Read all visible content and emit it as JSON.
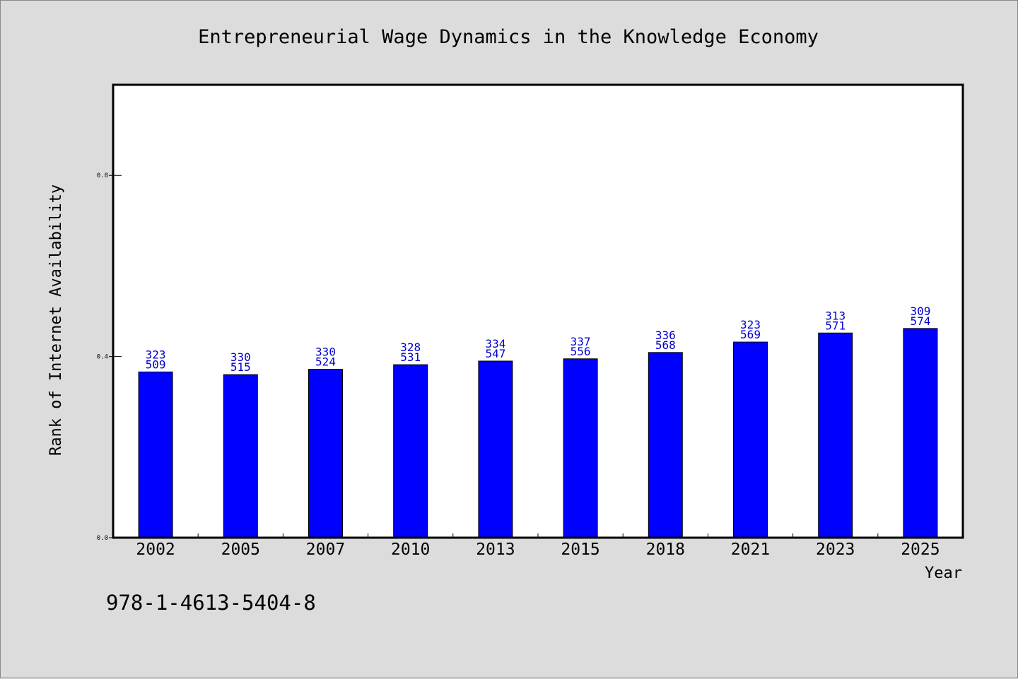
{
  "chart_data": {
    "type": "bar",
    "title": "Entrepreneurial Wage Dynamics in the Knowledge Economy",
    "xlabel": "Year",
    "ylabel": "Rank of Internet Availability",
    "categories": [
      "2002",
      "2005",
      "2007",
      "2010",
      "2013",
      "2015",
      "2018",
      "2021",
      "2023",
      "2025"
    ],
    "values": [
      0.366,
      0.36,
      0.372,
      0.382,
      0.39,
      0.395,
      0.409,
      0.432,
      0.452,
      0.462
    ],
    "labels_top": [
      "323",
      "330",
      "330",
      "328",
      "334",
      "337",
      "336",
      "323",
      "313",
      "309"
    ],
    "labels_bottom": [
      "509",
      "515",
      "524",
      "531",
      "547",
      "556",
      "568",
      "569",
      "571",
      "574"
    ],
    "ylim": [
      0,
      1.0
    ],
    "yticks": [
      0.0,
      0.4,
      0.8
    ],
    "ytick_labels": [
      "0.0",
      "0.4",
      "0.8"
    ],
    "grid": false,
    "colors": {
      "bar": "#0000ff",
      "bar_edge": "#000000",
      "data_label": "#0000cc",
      "background": "#dcdcdc",
      "plot_background": "#ffffff"
    }
  },
  "footer": {
    "isbn": "978-1-4613-5404-8"
  }
}
